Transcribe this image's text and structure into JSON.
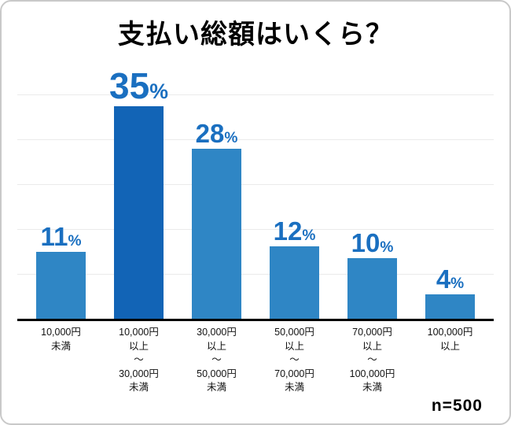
{
  "chart_data": {
    "type": "bar",
    "title": "支払い総額はいくら？",
    "categories": [
      "10,000円\n未満",
      "10,000円\n以上\n～\n30,000円\n未満",
      "30,000円\n以上\n～\n50,000円\n未満",
      "50,000円\n以上\n～\n70,000円\n未満",
      "70,000円\n以上\n～\n100,000円\n未満",
      "100,000円\n以上"
    ],
    "values": [
      11,
      35,
      28,
      12,
      10,
      4
    ],
    "unit": "%",
    "ylim": [
      0,
      37
    ],
    "grid": true,
    "legend": "none",
    "highlight_index": 1,
    "colors": {
      "bar": "#2f86c5",
      "bar_highlight": "#1264b6",
      "value_label": "#1a6fc0",
      "axis": "#000000"
    }
  },
  "footer": {
    "n_label": "n=500"
  }
}
